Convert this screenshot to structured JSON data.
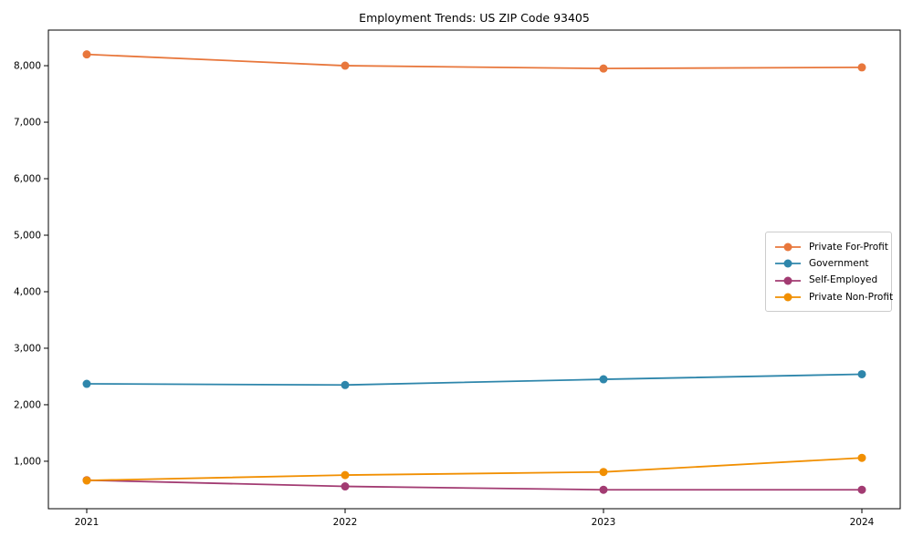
{
  "chart_data": {
    "type": "line",
    "title": "Employment Trends: US ZIP Code 93405",
    "x": [
      2021,
      2022,
      2023,
      2024
    ],
    "xlabel": "",
    "ylabel": "",
    "x_tick_labels": [
      "2021",
      "2022",
      "2023",
      "2024"
    ],
    "y_tick_labels": [
      "1,000",
      "2,000",
      "3,000",
      "4,000",
      "5,000",
      "6,000",
      "7,000",
      "8,000"
    ],
    "yticks": [
      1000,
      2000,
      3000,
      4000,
      5000,
      6000,
      7000,
      8000
    ],
    "ylim": [
      160,
      8630
    ],
    "grid": false,
    "legend_position": "center right",
    "series": [
      {
        "name": "Private For-Profit",
        "color": "#E8773C",
        "values": [
          8200,
          8000,
          7950,
          7970
        ]
      },
      {
        "name": "Government",
        "color": "#2E86AB",
        "values": [
          2370,
          2350,
          2450,
          2540
        ]
      },
      {
        "name": "Self-Employed",
        "color": "#A23B72",
        "values": [
          665,
          555,
          495,
          495
        ]
      },
      {
        "name": "Private Non-Profit",
        "color": "#F18F01",
        "values": [
          660,
          755,
          810,
          1060
        ]
      }
    ],
    "axis_color": "#000000"
  }
}
